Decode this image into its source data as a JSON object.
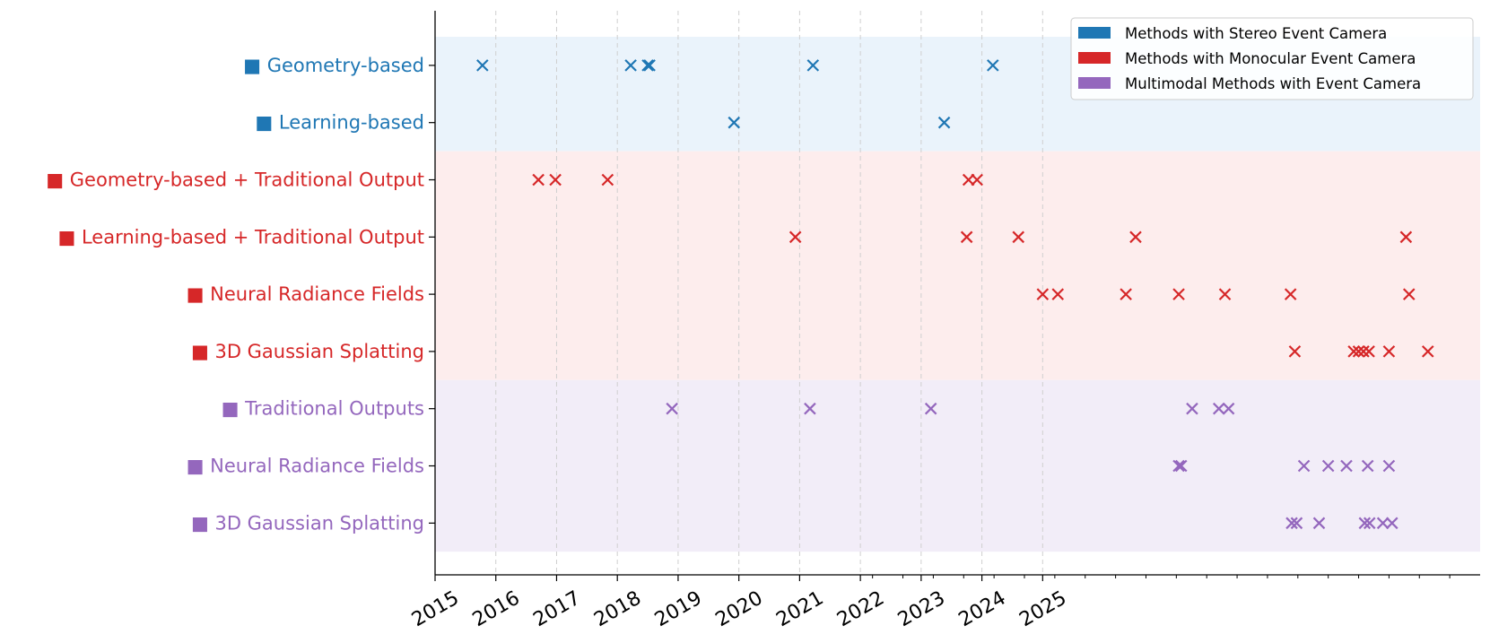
{
  "chart_data": {
    "type": "scatter",
    "marker": "x",
    "title": "",
    "xlabel": "",
    "ylabel": "",
    "grid": "vertical-dashed-at-year-ticks",
    "legend_position": "top-right",
    "x_ticks": [
      "2015",
      "2016",
      "2017",
      "2018",
      "2019",
      "2020",
      "2021",
      "2022",
      "2023",
      "2024",
      "2025"
    ],
    "groups": [
      {
        "legend": "Methods with Stereo Event Camera",
        "color": "#1f77b4",
        "band_color": "#eaf3fb"
      },
      {
        "legend": "Methods with Monocular Event Camera",
        "color": "#d62728",
        "band_color": "#fdeded"
      },
      {
        "legend": "Multimodal Methods with Event Camera",
        "color": "#9467bd",
        "band_color": "#f2edf8"
      }
    ],
    "categories": [
      {
        "label": "■ Geometry-based",
        "group": 0
      },
      {
        "label": "■ Learning-based",
        "group": 0
      },
      {
        "label": "■ Geometry-based + Traditional Output",
        "group": 1
      },
      {
        "label": "■ Learning-based + Traditional Output",
        "group": 1
      },
      {
        "label": "■ Neural Radiance Fields",
        "group": 1
      },
      {
        "label": "■ 3D Gaussian Splatting",
        "group": 1
      },
      {
        "label": "■ Traditional Outputs",
        "group": 2
      },
      {
        "label": "■ Neural Radiance Fields",
        "group": 2
      },
      {
        "label": "■ 3D Gaussian Splatting",
        "group": 2
      }
    ],
    "points": [
      [
        0,
        0.78
      ],
      [
        0,
        3.22
      ],
      [
        0,
        3.5
      ],
      [
        0,
        3.53
      ],
      [
        0,
        6.22
      ],
      [
        0,
        9.18
      ],
      [
        1,
        4.92
      ],
      [
        1,
        8.38
      ],
      [
        2,
        1.7
      ],
      [
        2,
        1.98
      ],
      [
        2,
        2.84
      ],
      [
        2,
        8.78
      ],
      [
        2,
        8.92
      ],
      [
        3,
        5.93
      ],
      [
        3,
        8.75
      ],
      [
        3,
        9.6
      ],
      [
        3,
        11.53
      ],
      [
        3,
        15.98
      ],
      [
        4,
        10.0
      ],
      [
        4,
        10.25
      ],
      [
        4,
        11.37
      ],
      [
        4,
        12.24
      ],
      [
        4,
        13.0
      ],
      [
        4,
        14.08
      ],
      [
        4,
        16.03
      ],
      [
        5,
        14.15
      ],
      [
        5,
        15.12
      ],
      [
        5,
        15.2
      ],
      [
        5,
        15.28
      ],
      [
        5,
        15.37
      ],
      [
        5,
        15.7
      ],
      [
        5,
        16.34
      ],
      [
        6,
        3.9
      ],
      [
        6,
        6.17
      ],
      [
        6,
        8.16
      ],
      [
        6,
        12.46
      ],
      [
        6,
        12.9
      ],
      [
        6,
        13.06
      ],
      [
        7,
        12.24
      ],
      [
        7,
        12.28
      ],
      [
        7,
        14.3
      ],
      [
        7,
        14.7
      ],
      [
        7,
        15.0
      ],
      [
        7,
        15.35
      ],
      [
        7,
        15.7
      ],
      [
        8,
        14.1
      ],
      [
        8,
        14.18
      ],
      [
        8,
        14.55
      ],
      [
        8,
        15.3
      ],
      [
        8,
        15.38
      ],
      [
        8,
        15.6
      ],
      [
        8,
        15.75
      ]
    ]
  }
}
